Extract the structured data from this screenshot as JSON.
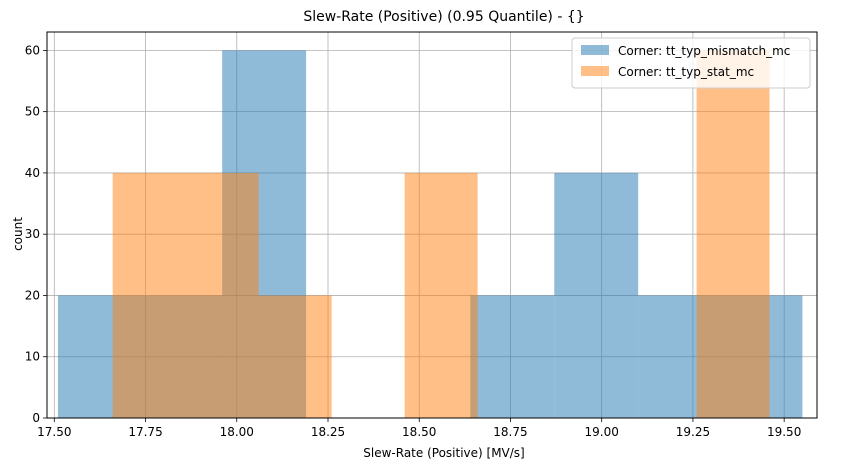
{
  "chart_data": {
    "type": "histogram",
    "title": "Slew-Rate (Positive) (0.95 Quantile) - {}",
    "xlabel": "Slew-Rate (Positive) [MV/s]",
    "ylabel": "count",
    "xlim": [
      17.48,
      19.59
    ],
    "ylim": [
      0,
      63
    ],
    "xticks": [
      17.5,
      17.75,
      18.0,
      18.25,
      18.5,
      18.75,
      19.0,
      19.25,
      19.5
    ],
    "xtick_labels": [
      "17.50",
      "17.75",
      "18.00",
      "18.25",
      "18.50",
      "18.75",
      "19.00",
      "19.25",
      "19.50"
    ],
    "yticks": [
      0,
      10,
      20,
      30,
      40,
      50,
      60
    ],
    "ytick_labels": [
      "0",
      "10",
      "20",
      "30",
      "40",
      "50",
      "60"
    ],
    "grid": true,
    "legend_position": "top-right",
    "series": [
      {
        "name": "Corner: tt_typ_mismatch_mc",
        "color": "#1f77b4",
        "opacity": 0.5,
        "bins": [
          {
            "x0": 17.51,
            "x1": 17.96,
            "count": 20
          },
          {
            "x0": 17.96,
            "x1": 18.19,
            "count": 60
          },
          {
            "x0": 18.19,
            "x1": 18.64,
            "count": 0
          },
          {
            "x0": 18.64,
            "x1": 18.87,
            "count": 20
          },
          {
            "x0": 18.87,
            "x1": 19.1,
            "count": 40
          },
          {
            "x0": 19.1,
            "x1": 19.55,
            "count": 20
          }
        ]
      },
      {
        "name": "Corner: tt_typ_stat_mc",
        "color": "#ff7f0e",
        "opacity": 0.5,
        "bins": [
          {
            "x0": 17.66,
            "x1": 17.96,
            "count": 40
          },
          {
            "x0": 17.96,
            "x1": 18.06,
            "count": 40
          },
          {
            "x0": 18.06,
            "x1": 18.26,
            "count": 20
          },
          {
            "x0": 18.26,
            "x1": 18.46,
            "count": 0
          },
          {
            "x0": 18.46,
            "x1": 18.66,
            "count": 40
          },
          {
            "x0": 18.66,
            "x1": 19.26,
            "count": 0
          },
          {
            "x0": 19.26,
            "x1": 19.46,
            "count": 60
          }
        ]
      }
    ]
  }
}
